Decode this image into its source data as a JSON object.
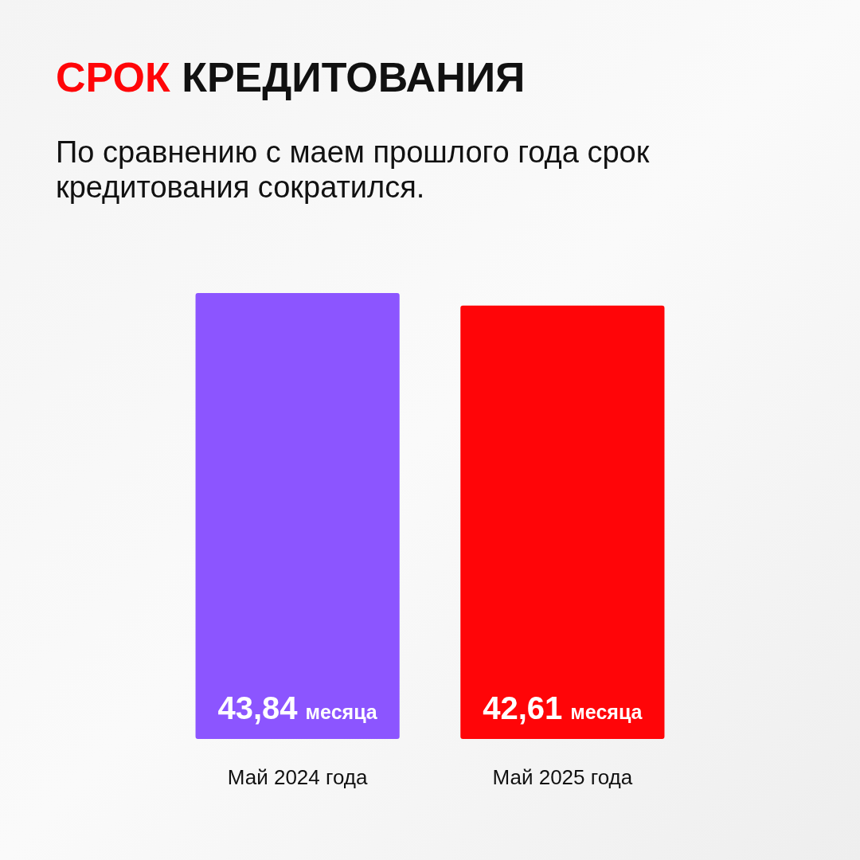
{
  "chart_data": {
    "type": "bar",
    "title": "СРОК КРЕДИТОВАНИЯ",
    "subtitle": "По сравнению с маем прошлого года срок кредитования сократился.",
    "categories": [
      "Май 2024 года",
      "Май 2025 года"
    ],
    "values": [
      43.84,
      42.61
    ],
    "colors": [
      "#8c55ff",
      "#ff0508"
    ],
    "value_labels": [
      "43,84 месяца",
      "42,61 месяца"
    ]
  }
}
